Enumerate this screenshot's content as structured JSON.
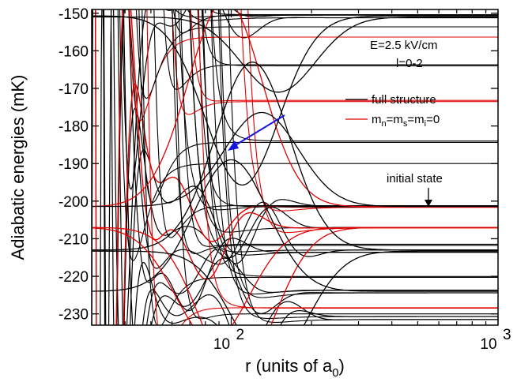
{
  "chart_data": {
    "type": "line",
    "xlabel": {
      "main": "r (units of a",
      "sub": "0",
      "close": ")"
    },
    "ylabel": "Adiabatic energies (mK)",
    "x_scale": "log",
    "xlim": [
      30,
      1000
    ],
    "ylim": [
      -233,
      -149
    ],
    "x_ticks": [
      {
        "value": 100,
        "base": "10",
        "exp": "2"
      },
      {
        "value": 1000,
        "base": "10",
        "exp": "3"
      }
    ],
    "y_ticks": [
      -150,
      -160,
      -170,
      -180,
      -190,
      -200,
      -210,
      -220,
      -230
    ],
    "grid": false,
    "annotations": {
      "field": "E=2.5 kV/cm",
      "partial_waves": "l=0-2",
      "initial_state": "initial state"
    },
    "legend": {
      "position": "right",
      "entries": [
        {
          "label": "full structure",
          "color": "#000000"
        },
        {
          "label_parts": [
            [
              "m",
              "n",
              "="
            ],
            [
              "m",
              "s",
              "="
            ],
            [
              "m",
              "i",
              "=0"
            ]
          ],
          "color": "#e00000"
        }
      ]
    },
    "series": [
      {
        "color": "#000000",
        "asymptote": -150.5
      },
      {
        "color": "#000000",
        "asymptote": -151.2
      },
      {
        "color": "#000000",
        "asymptote": -201.3
      },
      {
        "color": "#000000",
        "asymptote": -207.0
      },
      {
        "color": "#000000",
        "asymptote": -213.0
      },
      {
        "color": "#000000",
        "asymptote": -213.6
      },
      {
        "color": "#000000",
        "asymptote": -223.7
      },
      {
        "color": "#000000",
        "asymptote": -224.4
      },
      {
        "color": "#000000",
        "asymptote": -230.7
      },
      {
        "color": "#000000",
        "asymptote": -231.5
      },
      {
        "color": "#e00000",
        "asymptote": -201.6
      },
      {
        "color": "#e00000",
        "asymptote": -207.1
      }
    ]
  }
}
